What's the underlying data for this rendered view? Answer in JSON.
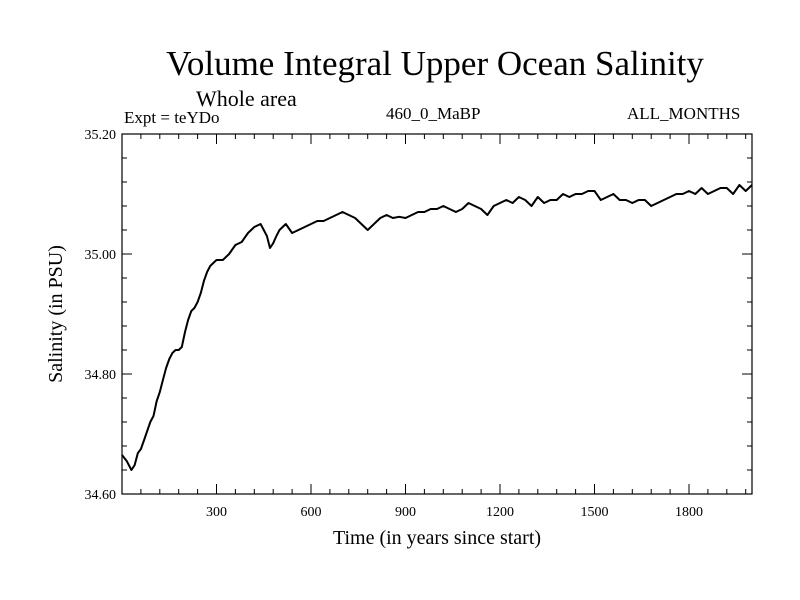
{
  "header": {
    "title": "Volume Integral Upper Ocean Salinity",
    "subtitle": "Whole area",
    "experiment": "Expt = teYDo",
    "center_label": "460_0_MaBP",
    "months_label": "ALL_MONTHS"
  },
  "colors": {
    "line": "#000000",
    "background": "#ffffff"
  },
  "chart_data": {
    "type": "line",
    "title": "Volume Integral Upper Ocean Salinity",
    "subtitle": "Whole area",
    "xlabel": "Time (in years since start)",
    "ylabel": "Salinity (in PSU)",
    "xlim": [
      0,
      2000
    ],
    "ylim": [
      34.6,
      35.2
    ],
    "x_ticks": [
      300,
      600,
      900,
      1200,
      1500,
      1800
    ],
    "x_tick_labels": [
      "300",
      "600",
      "900",
      "1200",
      "1500",
      "1800"
    ],
    "y_ticks": [
      34.6,
      34.8,
      35.0,
      35.2
    ],
    "y_tick_labels": [
      "34.60",
      "34.80",
      "35.00",
      "35.20"
    ],
    "grid": false,
    "series": [
      {
        "name": "Salinity",
        "x": [
          0,
          15,
          30,
          40,
          50,
          60,
          70,
          80,
          90,
          100,
          110,
          120,
          130,
          140,
          150,
          160,
          170,
          180,
          190,
          200,
          210,
          220,
          230,
          240,
          250,
          260,
          270,
          280,
          290,
          300,
          320,
          340,
          360,
          380,
          400,
          420,
          440,
          460,
          470,
          480,
          490,
          500,
          520,
          540,
          560,
          580,
          600,
          620,
          640,
          660,
          680,
          700,
          720,
          740,
          760,
          780,
          800,
          820,
          840,
          860,
          880,
          900,
          920,
          940,
          960,
          980,
          1000,
          1020,
          1040,
          1060,
          1080,
          1100,
          1120,
          1140,
          1160,
          1180,
          1200,
          1220,
          1240,
          1260,
          1280,
          1300,
          1320,
          1340,
          1360,
          1380,
          1400,
          1420,
          1440,
          1460,
          1480,
          1500,
          1520,
          1540,
          1560,
          1580,
          1600,
          1620,
          1640,
          1660,
          1680,
          1700,
          1720,
          1740,
          1760,
          1780,
          1800,
          1820,
          1840,
          1860,
          1880,
          1900,
          1920,
          1940,
          1960,
          1980,
          2000
        ],
        "values": [
          34.665,
          34.655,
          34.64,
          34.648,
          34.668,
          34.675,
          34.69,
          34.705,
          34.72,
          34.73,
          34.755,
          34.77,
          34.79,
          34.81,
          34.825,
          34.835,
          34.84,
          34.84,
          34.845,
          34.87,
          34.89,
          34.905,
          34.91,
          34.92,
          34.935,
          34.955,
          34.97,
          34.98,
          34.985,
          34.99,
          34.99,
          35.0,
          35.015,
          35.02,
          35.035,
          35.045,
          35.05,
          35.03,
          35.01,
          35.018,
          35.03,
          35.04,
          35.05,
          35.035,
          35.04,
          35.045,
          35.05,
          35.055,
          35.055,
          35.06,
          35.065,
          35.07,
          35.065,
          35.06,
          35.05,
          35.04,
          35.05,
          35.06,
          35.065,
          35.06,
          35.062,
          35.06,
          35.065,
          35.07,
          35.07,
          35.075,
          35.075,
          35.08,
          35.075,
          35.07,
          35.075,
          35.085,
          35.08,
          35.075,
          35.065,
          35.08,
          35.085,
          35.09,
          35.085,
          35.095,
          35.09,
          35.08,
          35.095,
          35.085,
          35.09,
          35.09,
          35.1,
          35.095,
          35.1,
          35.1,
          35.105,
          35.105,
          35.09,
          35.095,
          35.1,
          35.09,
          35.09,
          35.085,
          35.09,
          35.09,
          35.08,
          35.085,
          35.09,
          35.095,
          35.1,
          35.1,
          35.105,
          35.1,
          35.11,
          35.1,
          35.105,
          35.11,
          35.11,
          35.1,
          35.115,
          35.105,
          35.115
        ]
      }
    ]
  }
}
